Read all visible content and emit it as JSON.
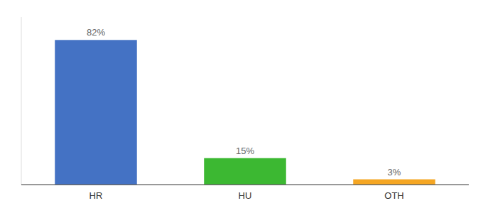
{
  "chart_data": {
    "type": "bar",
    "categories": [
      "HR",
      "HU",
      "OTH"
    ],
    "values": [
      82,
      15,
      3
    ],
    "value_labels": [
      "82%",
      "15%",
      "3%"
    ],
    "colors": [
      "#4472c4",
      "#3cb832",
      "#f5a623"
    ],
    "ylim": [
      0,
      95
    ],
    "data_labels": true,
    "tick_labels": "x"
  }
}
